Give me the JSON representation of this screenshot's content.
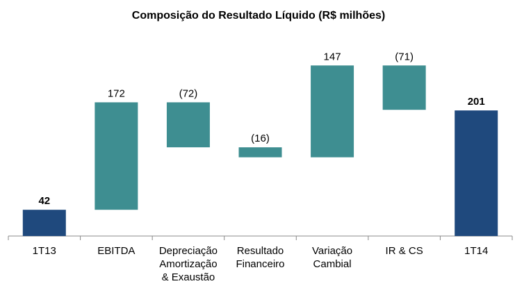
{
  "chart_data": {
    "type": "waterfall",
    "title": "Composição do Resultado Líquido (R$ milhões)",
    "categories": [
      [
        "1T13"
      ],
      [
        "EBITDA"
      ],
      [
        "Depreciação",
        "Amortização",
        "& Exaustão"
      ],
      [
        "Resultado",
        "Financeiro"
      ],
      [
        "Variação",
        "Cambial"
      ],
      [
        "IR & CS"
      ],
      [
        "1T14"
      ]
    ],
    "values": [
      42,
      172,
      -72,
      -16,
      147,
      -71,
      201
    ],
    "value_labels": [
      "42",
      "172",
      "(72)",
      "(16)",
      "147",
      "(71)",
      "201"
    ],
    "total_color": "#1f497d",
    "change_color": "#3e8e91",
    "ylim": [
      0,
      260
    ]
  }
}
